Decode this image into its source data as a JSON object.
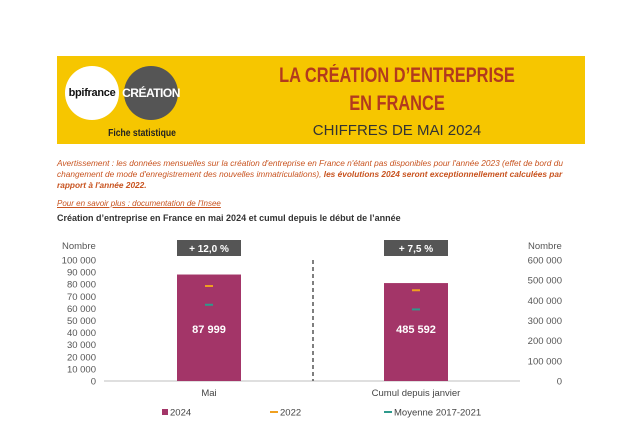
{
  "header": {
    "logo_bpi": "bpifrance",
    "logo_creation": "CRÉATION",
    "fiche": "Fiche statistique",
    "title_line1": "LA CRÉATION D’ENTREPRISE",
    "title_line2": "EN FRANCE",
    "subtitle": "CHIFFRES DE MAI 2024"
  },
  "warning": {
    "text": "Avertissement : les données mensuelles sur la création d'entreprise en France n'étant pas disponibles pour l'année 2023 (effet de bord du changement de mode d'enregistrement des nouvelles immatriculations), ",
    "bold": "les évolutions 2024 seront exceptionnellement calculées par rapport à l'année 2022."
  },
  "link_text": "Pour en savoir plus : documentation de l'Insee",
  "chart_title": "Création d’entreprise en France en mai 2024 et cumul depuis le début de l’année",
  "colors": {
    "banner": "#f6c600",
    "bar": "#a33568",
    "marker_2022": "#f0a020",
    "marker_avg": "#2e9a8c",
    "badge": "#555555",
    "title_red": "#b23a1e"
  },
  "chart_data": {
    "type": "bar",
    "title": "Création d’entreprise en France en mai 2024 et cumul depuis le début de l’année",
    "left_axis": {
      "label": "Nombre",
      "min": 0,
      "max": 100000,
      "step": 10000,
      "tick_labels": [
        "0",
        "10 000",
        "20 000",
        "30 000",
        "40 000",
        "50 000",
        "60 000",
        "70 000",
        "80 000",
        "90 000",
        "100 000"
      ]
    },
    "right_axis": {
      "label": "Nombre",
      "min": 0,
      "max": 600000,
      "step": 100000,
      "tick_labels": [
        "0",
        "100 000",
        "200 000",
        "300 000",
        "400 000",
        "500 000",
        "600 000"
      ]
    },
    "categories": [
      "Mai",
      "Cumul depuis janvier"
    ],
    "series": [
      {
        "name": "2024",
        "type": "bar",
        "values": [
          87999,
          485592
        ],
        "labels": [
          "87 999",
          "485 592"
        ]
      },
      {
        "name": "2022",
        "type": "marker",
        "values": [
          78500,
          450000
        ]
      },
      {
        "name": "Moyenne 2017-2021",
        "type": "marker",
        "values": [
          63000,
          355000
        ]
      }
    ],
    "change_badges": [
      "+ 12,0 %",
      "+ 7,5 %"
    ],
    "legend": [
      "2024",
      "2022",
      "Moyenne 2017-2021"
    ],
    "grid": false
  }
}
